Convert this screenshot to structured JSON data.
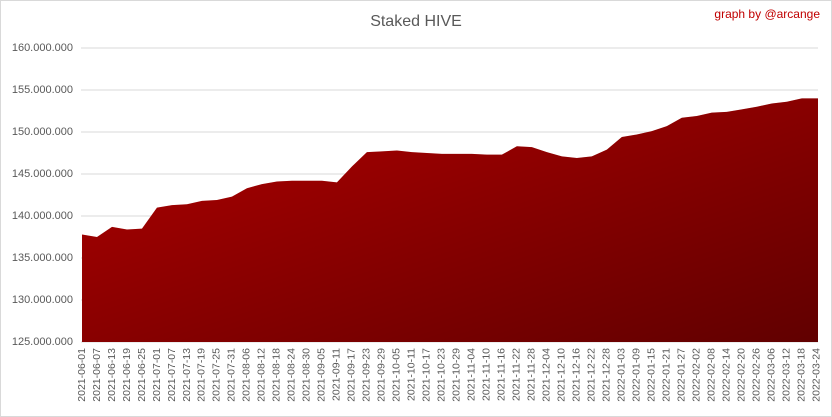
{
  "chart_data": {
    "type": "area",
    "title": "Staked HIVE",
    "annotation": "graph by @arcange",
    "color": "#b00000",
    "grid": true,
    "categories": [
      "2021-06-01",
      "2021-06-07",
      "2021-06-13",
      "2021-06-19",
      "2021-06-25",
      "2021-07-01",
      "2021-07-07",
      "2021-07-13",
      "2021-07-19",
      "2021-07-25",
      "2021-07-31",
      "2021-08-06",
      "2021-08-12",
      "2021-08-18",
      "2021-08-24",
      "2021-08-30",
      "2021-09-05",
      "2021-09-11",
      "2021-09-17",
      "2021-09-23",
      "2021-09-29",
      "2021-10-05",
      "2021-10-11",
      "2021-10-17",
      "2021-10-23",
      "2021-10-29",
      "2021-11-04",
      "2021-11-10",
      "2021-11-16",
      "2021-11-22",
      "2021-11-28",
      "2021-12-04",
      "2021-12-10",
      "2021-12-16",
      "2021-12-22",
      "2021-12-28",
      "2022-01-03",
      "2022-01-09",
      "2022-01-15",
      "2022-01-21",
      "2022-01-27",
      "2022-02-02",
      "2022-02-08",
      "2022-02-14",
      "2022-02-20",
      "2022-02-26",
      "2022-03-06",
      "2022-03-12",
      "2022-03-18",
      "2022-03-24"
    ],
    "values": [
      137800000,
      137500000,
      138700000,
      138400000,
      138500000,
      141000000,
      141300000,
      141400000,
      141800000,
      141900000,
      142300000,
      143300000,
      143800000,
      144100000,
      144200000,
      144200000,
      144200000,
      144000000,
      145900000,
      147600000,
      147700000,
      147800000,
      147600000,
      147500000,
      147400000,
      147400000,
      147400000,
      147300000,
      147300000,
      148300000,
      148200000,
      147600000,
      147100000,
      146900000,
      147100000,
      147900000,
      149400000,
      149700000,
      150100000,
      150700000,
      151700000,
      151900000,
      152300000,
      152400000,
      152700000,
      153000000,
      153400000,
      153600000,
      154000000,
      154000000
    ],
    "ylim": [
      125000000,
      160000000
    ],
    "yticks": [
      {
        "value": 125000000,
        "label": "125.000.000"
      },
      {
        "value": 130000000,
        "label": "130.000.000"
      },
      {
        "value": 135000000,
        "label": "135.000.000"
      },
      {
        "value": 140000000,
        "label": "140.000.000"
      },
      {
        "value": 145000000,
        "label": "145.000.000"
      },
      {
        "value": 150000000,
        "label": "150.000.000"
      },
      {
        "value": 155000000,
        "label": "155.000.000"
      },
      {
        "value": 160000000,
        "label": "160.000.000"
      }
    ]
  }
}
